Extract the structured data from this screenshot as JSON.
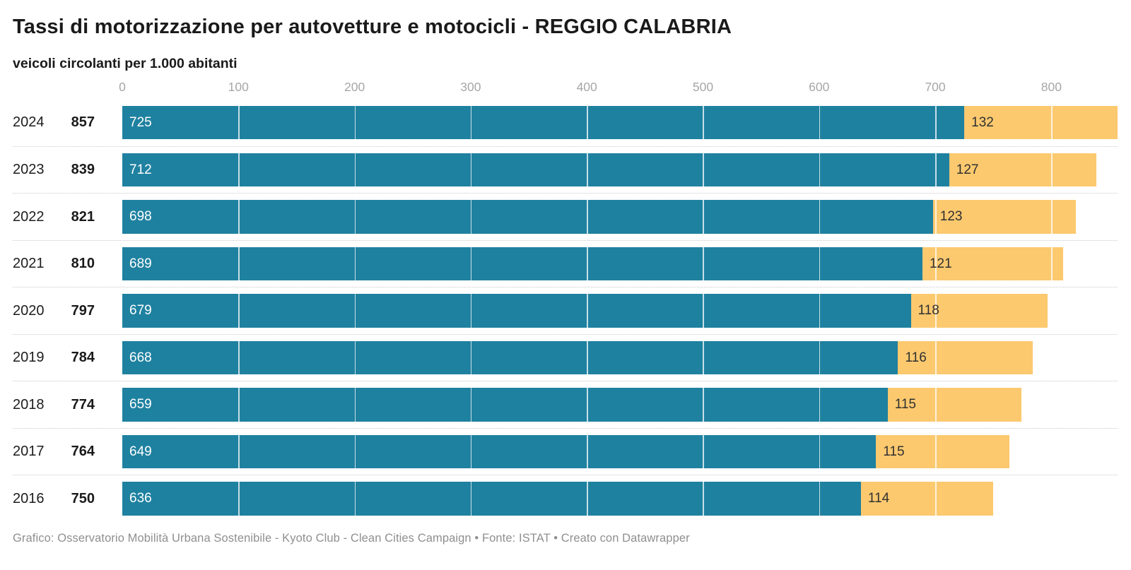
{
  "header": {
    "title": "Tassi di motorizzazione per autovetture e motocicli - REGGIO CALABRIA",
    "subtitle": "veicoli circolanti per 1.000 abitanti"
  },
  "chart_data": {
    "type": "bar",
    "orientation": "horizontal",
    "stacked": true,
    "categories": [
      "2024",
      "2023",
      "2022",
      "2021",
      "2020",
      "2019",
      "2018",
      "2017",
      "2016"
    ],
    "totals": [
      857,
      839,
      821,
      810,
      797,
      784,
      774,
      764,
      750
    ],
    "series": [
      {
        "name": "autovetture",
        "color": "#1F81A0",
        "label_color": "#ffffff",
        "values": [
          725,
          712,
          698,
          689,
          679,
          668,
          659,
          649,
          636
        ]
      },
      {
        "name": "motocicli",
        "color": "#FCC96F",
        "label_color": "#303030",
        "values": [
          132,
          127,
          123,
          121,
          118,
          116,
          115,
          115,
          114
        ]
      }
    ],
    "xlim": [
      0,
      857
    ],
    "ticks": [
      0,
      100,
      200,
      300,
      400,
      500,
      600,
      700,
      800
    ],
    "grid": "white-lines-over-bars",
    "legend": "none",
    "row_separator": "dotted"
  },
  "footer": {
    "credit": "Grafico: Osservatorio Mobilità Urbana Sostenibile - Kyoto Club - Clean Cities Campaign • Fonte: ISTAT • Creato con Datawrapper"
  }
}
